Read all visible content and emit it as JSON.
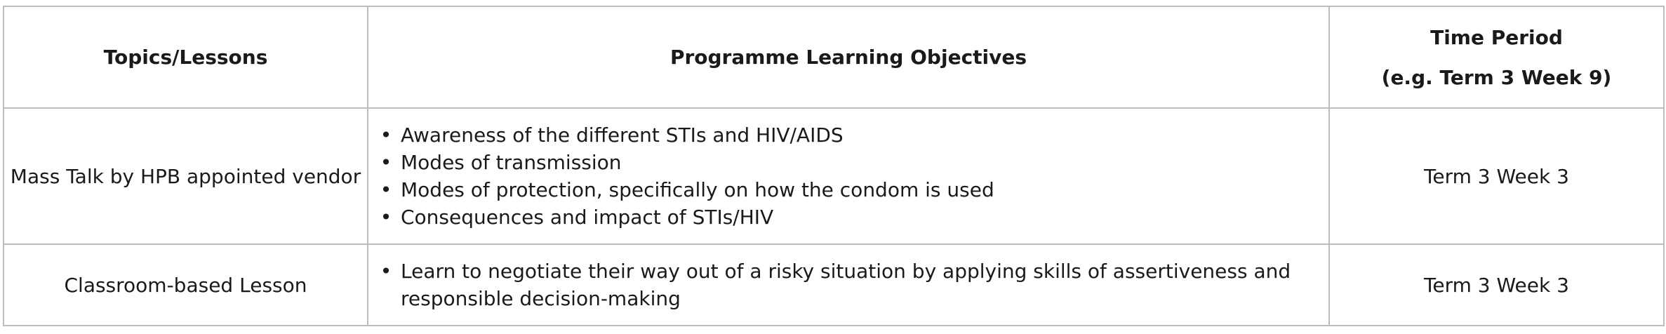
{
  "table": {
    "headers": {
      "topics": "Topics/Lessons",
      "objectives": "Programme Learning Objectives",
      "time_period_line1": "Time Period",
      "time_period_line2": "(e.g. Term 3 Week 9)"
    },
    "rows": [
      {
        "topic": "Mass Talk by HPB appointed vendor",
        "objectives": [
          "Awareness of the different STIs and HIV/AIDS",
          "Modes of transmission",
          "Modes of protection, specifically on how the condom is used",
          "Consequences and impact of STIs/HIV"
        ],
        "time_period": "Term 3 Week 3"
      },
      {
        "topic": "Classroom-based Lesson",
        "objectives": [
          "Learn to negotiate their way out of a risky situation by applying skills of assertiveness and responsible decision-making"
        ],
        "time_period": "Term 3 Week 3"
      }
    ]
  }
}
